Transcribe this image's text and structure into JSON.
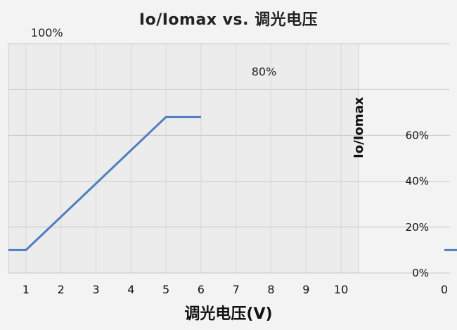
{
  "chart_data": {
    "type": "line",
    "title": "Io/Iomax vs. 调光电压",
    "xlabel": "调光电压(V)",
    "ylabel": "Io/Iomax",
    "x_ticks": [
      "1",
      "2",
      "3",
      "4",
      "5",
      "6",
      "7",
      "8",
      "9",
      "10"
    ],
    "y_ticks": [
      "0%",
      "20%",
      "40%",
      "60%"
    ],
    "y_tick_right_extra": "0",
    "xlim": [
      0.5,
      10.5
    ],
    "ylim": [
      0,
      100
    ],
    "grid": true,
    "series": [
      {
        "color": "#4f7fbf",
        "x": [
          0.5,
          1,
          2,
          3,
          4,
          5,
          6
        ],
        "y": [
          10,
          10,
          24.5,
          39,
          53.5,
          68,
          68
        ]
      }
    ],
    "annotations": [
      {
        "text": "100%",
        "x": 1.6,
        "y": 103
      },
      {
        "text": "80%",
        "x": 7.8,
        "y": 86
      }
    ]
  }
}
